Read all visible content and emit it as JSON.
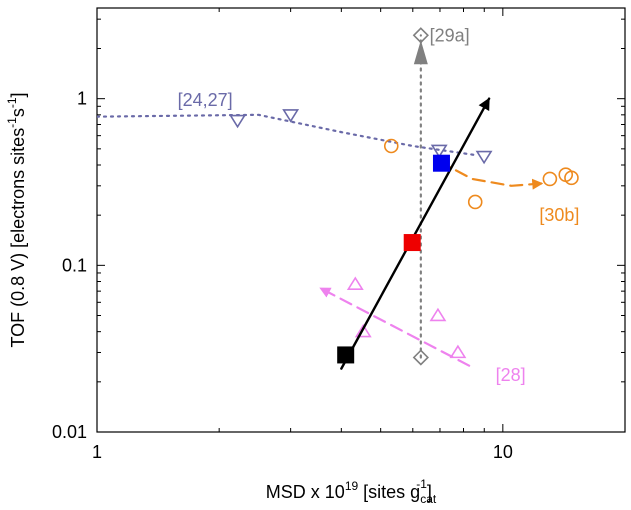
{
  "chart_data": {
    "type": "scatter",
    "x_scale": "log",
    "y_scale": "log",
    "xlim": [
      1,
      20
    ],
    "ylim": [
      0.01,
      3.5
    ],
    "xlabel": "MSD x 10",
    "xlabel_sup": "19",
    "xlabel_rest": " [sites g",
    "xlabel_sub": "cat",
    "xlabel_sup2": "-1",
    "xlabel_end": "]",
    "ylabel": "TOF (0.8 V) [electrons sites",
    "ylabel_sup": "-1",
    "ylabel_mid": "s",
    "ylabel_sup2": "-1",
    "ylabel_end": "]",
    "x_ticks": [
      {
        "value": 1,
        "label": "1"
      },
      {
        "value": 10,
        "label": "10"
      }
    ],
    "y_ticks": [
      {
        "value": 0.01,
        "label": "0.01"
      },
      {
        "value": 0.1,
        "label": "0.1"
      },
      {
        "value": 1,
        "label": "1"
      }
    ],
    "grid": false,
    "series": [
      {
        "name": "[29a]",
        "color": "#808080",
        "marker": "diamond",
        "line": "dotted",
        "points": [
          {
            "x": 6.28,
            "y": 2.4
          },
          {
            "x": 6.28,
            "y": 0.028
          }
        ],
        "trend": [
          [
            6.28,
            0.028
          ],
          [
            6.28,
            2.4
          ]
        ],
        "arrow_tip": [
          6.28,
          1.9
        ],
        "label_pos": "upper-right"
      },
      {
        "name": "[24,27]",
        "color": "#6a6aa8",
        "marker": "triangle-down",
        "line": "dotted",
        "points": [
          {
            "x": 2.22,
            "y": 0.74
          },
          {
            "x": 3.0,
            "y": 0.8
          },
          {
            "x": 6.97,
            "y": 0.49
          },
          {
            "x": 8.99,
            "y": 0.45
          }
        ],
        "trend": [
          [
            1.0,
            0.78
          ],
          [
            2.5,
            0.8
          ],
          [
            4.0,
            0.63
          ],
          [
            6.0,
            0.52
          ],
          [
            8.0,
            0.47
          ],
          [
            8.5,
            0.46
          ]
        ],
        "label_pos": "left"
      },
      {
        "name": "[30b]",
        "color": "#ee8a1e",
        "marker": "circle",
        "line": "dashed",
        "points": [
          {
            "x": 5.31,
            "y": 0.52
          },
          {
            "x": 8.55,
            "y": 0.24
          },
          {
            "x": 13.06,
            "y": 0.33
          },
          {
            "x": 14.29,
            "y": 0.35
          },
          {
            "x": 14.76,
            "y": 0.335
          }
        ],
        "trend": [
          [
            6.97,
            0.42
          ],
          [
            8.4,
            0.33
          ],
          [
            10.5,
            0.3
          ],
          [
            12.5,
            0.31
          ]
        ],
        "arrow_tip": [
          12.5,
          0.31
        ],
        "label_pos": "lower-right"
      },
      {
        "name": "[28]",
        "color": "#ee82ee",
        "marker": "triangle-up",
        "line": "dashed",
        "points": [
          {
            "x": 4.33,
            "y": 0.077
          },
          {
            "x": 4.53,
            "y": 0.04
          },
          {
            "x": 6.92,
            "y": 0.05
          },
          {
            "x": 7.75,
            "y": 0.03
          }
        ],
        "trend": [
          [
            8.26,
            0.025
          ],
          [
            3.55,
            0.073
          ]
        ],
        "arrow_tip": [
          3.55,
          0.073
        ],
        "label_pos": "right"
      },
      {
        "name": "",
        "color": "#000000",
        "marker": "square",
        "line": "solid",
        "points": [
          {
            "x": 4.1,
            "y": 0.029,
            "color": "#000000"
          },
          {
            "x": 5.98,
            "y": 0.137,
            "color": "#ee0000"
          },
          {
            "x": 7.06,
            "y": 0.41,
            "color": "#0000ee"
          }
        ],
        "trend": [
          [
            4.0,
            0.024
          ],
          [
            9.25,
            1.0
          ]
        ],
        "arrow_tip": [
          9.25,
          1.0
        ]
      }
    ],
    "annotations": [
      {
        "text": "[29a]",
        "x": 6.6,
        "y": 2.4,
        "color": "#808080"
      },
      {
        "text": "[24,27]",
        "x": 1.58,
        "y": 0.98,
        "color": "#6a6aa8"
      },
      {
        "text": "[30b]",
        "x": 12.3,
        "y": 0.2,
        "color": "#ee8a1e"
      },
      {
        "text": "[28]",
        "x": 9.6,
        "y": 0.022,
        "color": "#ee82ee"
      }
    ]
  }
}
